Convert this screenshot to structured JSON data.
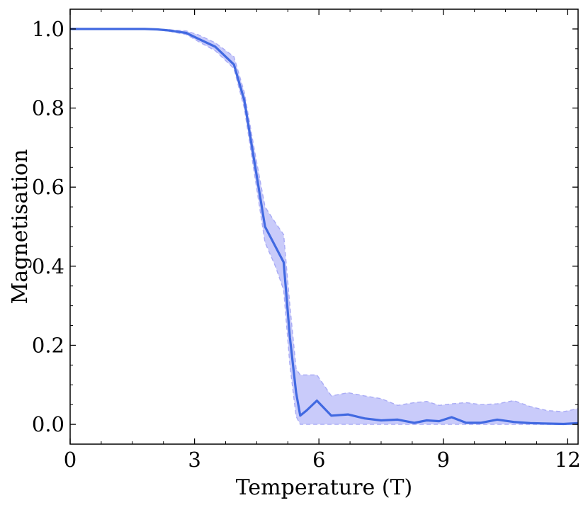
{
  "chart_data": {
    "type": "line",
    "title": "",
    "xlabel": "Temperature (T)",
    "ylabel": "Magnetisation",
    "xlim": [
      0,
      12.25
    ],
    "ylim": [
      -0.05,
      1.05
    ],
    "xticks": [
      0,
      3,
      6,
      9,
      12
    ],
    "xtick_labels": [
      "0",
      "3",
      "6",
      "9",
      "12"
    ],
    "yticks": [
      0.0,
      0.2,
      0.4,
      0.6,
      0.8,
      1.0
    ],
    "ytick_labels": [
      "0.0",
      "0.2",
      "0.4",
      "0.6",
      "0.8",
      "1.0"
    ],
    "grid": false,
    "legend": "none",
    "colors": {
      "line": "#4169e1",
      "band_fill": "#c6c8fa",
      "band_edge": "#a9abf5"
    },
    "series": [
      {
        "x": [
          0.0,
          0.3,
          0.6,
          0.9,
          1.2,
          1.5,
          1.8,
          2.1,
          2.4,
          2.8,
          3.1,
          3.5,
          3.95,
          4.2,
          4.45,
          4.7,
          4.95,
          5.15,
          5.3,
          5.45,
          5.55,
          5.7,
          5.95,
          6.3,
          6.7,
          7.1,
          7.5,
          7.9,
          8.3,
          8.6,
          8.9,
          9.2,
          9.55,
          9.9,
          10.3,
          10.7,
          11.1,
          11.5,
          11.9,
          12.25
        ],
        "values": [
          1.0,
          1.0,
          1.0,
          1.0,
          1.0,
          1.0,
          1.0,
          0.999,
          0.996,
          0.99,
          0.975,
          0.955,
          0.91,
          0.82,
          0.66,
          0.5,
          0.45,
          0.41,
          0.22,
          0.08,
          0.022,
          0.035,
          0.06,
          0.022,
          0.025,
          0.015,
          0.01,
          0.012,
          0.004,
          0.01,
          0.008,
          0.018,
          0.004,
          0.004,
          0.012,
          0.006,
          0.003,
          0.002,
          0.001,
          0.003
        ],
        "lower": [
          1.0,
          1.0,
          1.0,
          1.0,
          1.0,
          1.0,
          1.0,
          0.998,
          0.994,
          0.986,
          0.968,
          0.945,
          0.9,
          0.8,
          0.63,
          0.46,
          0.4,
          0.34,
          0.15,
          0.02,
          0.0,
          0.0,
          0.0,
          0.0,
          0.0,
          0.0,
          0.0,
          0.0,
          0.0,
          0.0,
          0.0,
          0.0,
          0.0,
          0.0,
          0.0,
          0.0,
          0.0,
          0.0,
          0.0,
          0.0
        ],
        "upper": [
          1.0,
          1.0,
          1.0,
          1.0,
          1.0,
          1.0,
          1.0,
          1.0,
          0.998,
          0.995,
          0.985,
          0.965,
          0.93,
          0.84,
          0.69,
          0.55,
          0.51,
          0.48,
          0.3,
          0.14,
          0.125,
          0.125,
          0.125,
          0.072,
          0.08,
          0.072,
          0.065,
          0.048,
          0.055,
          0.058,
          0.048,
          0.052,
          0.055,
          0.05,
          0.052,
          0.06,
          0.045,
          0.035,
          0.032,
          0.04
        ]
      }
    ]
  }
}
